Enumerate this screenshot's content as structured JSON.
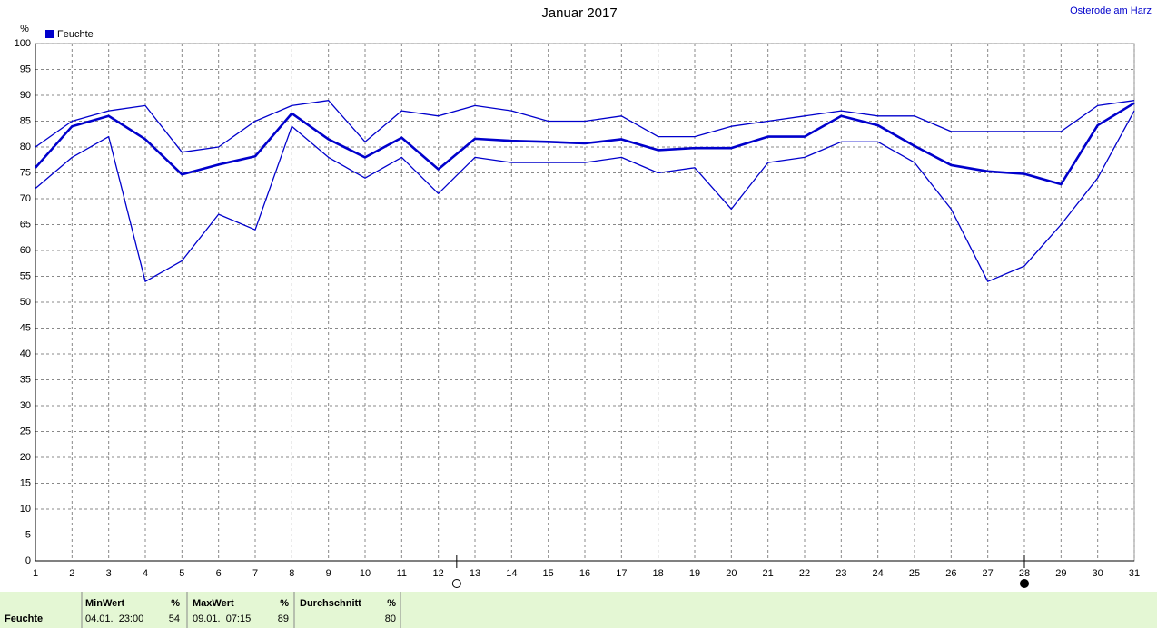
{
  "chart_data": {
    "type": "line",
    "title": "Januar 2017",
    "location": "Osterode am Harz",
    "ylabel": "%",
    "legend": "Feuchte",
    "legend_color": "#0000cc",
    "x": [
      1,
      2,
      3,
      4,
      5,
      6,
      7,
      8,
      9,
      10,
      11,
      12,
      13,
      14,
      15,
      16,
      17,
      18,
      19,
      20,
      21,
      22,
      23,
      24,
      25,
      26,
      27,
      28,
      29,
      30,
      31
    ],
    "xlim": [
      1,
      31
    ],
    "xticks": [
      1,
      2,
      3,
      4,
      5,
      6,
      7,
      8,
      9,
      10,
      11,
      12,
      13,
      14,
      15,
      16,
      17,
      18,
      19,
      20,
      21,
      22,
      23,
      24,
      25,
      26,
      27,
      28,
      29,
      30,
      31
    ],
    "ylim": [
      0,
      100
    ],
    "yticks": [
      0,
      5,
      10,
      15,
      20,
      25,
      30,
      35,
      40,
      45,
      50,
      55,
      60,
      65,
      70,
      75,
      80,
      85,
      90,
      95,
      100
    ],
    "grid": true,
    "series": [
      {
        "color": "#0000cc",
        "line_width": 1.3,
        "values": [
          80,
          85,
          87,
          88,
          79,
          80,
          85,
          88,
          89,
          81,
          87,
          86,
          88,
          87,
          85,
          85,
          86,
          82,
          82,
          84,
          85,
          86,
          87,
          86,
          86,
          83,
          83,
          83,
          83,
          88,
          89
        ]
      },
      {
        "color": "#0000cc",
        "line_width": 2.6,
        "values": [
          76,
          84,
          86,
          81.5,
          74.7,
          76.6,
          78.2,
          86.5,
          81.5,
          78,
          81.8,
          75.7,
          81.6,
          81.2,
          81,
          80.7,
          81.5,
          79.4,
          79.8,
          79.8,
          82,
          82,
          86,
          84.2,
          80.2,
          76.5,
          75.3,
          74.8,
          72.8,
          84.2,
          88.5
        ]
      },
      {
        "color": "#0000cc",
        "line_width": 1.3,
        "values": [
          72,
          78,
          82,
          54,
          58,
          67,
          64,
          84,
          78,
          74,
          78,
          71,
          78,
          77,
          77,
          77,
          78,
          75,
          76,
          68,
          77,
          78,
          81,
          81,
          77,
          68,
          54,
          57,
          65,
          74,
          87
        ]
      }
    ],
    "moon_phases": [
      {
        "x": 12.5,
        "filled": false
      },
      {
        "x": 28,
        "filled": true
      }
    ]
  },
  "summary": {
    "row_label": "Feuchte",
    "columns": [
      {
        "title": "MinWert",
        "unit": "%",
        "time": "04.01.  23:00",
        "value": 54
      },
      {
        "title": "MaxWert",
        "unit": "%",
        "time": "09.01.  07:15",
        "value": 89
      },
      {
        "title": "Durchschnitt",
        "unit": "%",
        "value": 80
      }
    ]
  }
}
